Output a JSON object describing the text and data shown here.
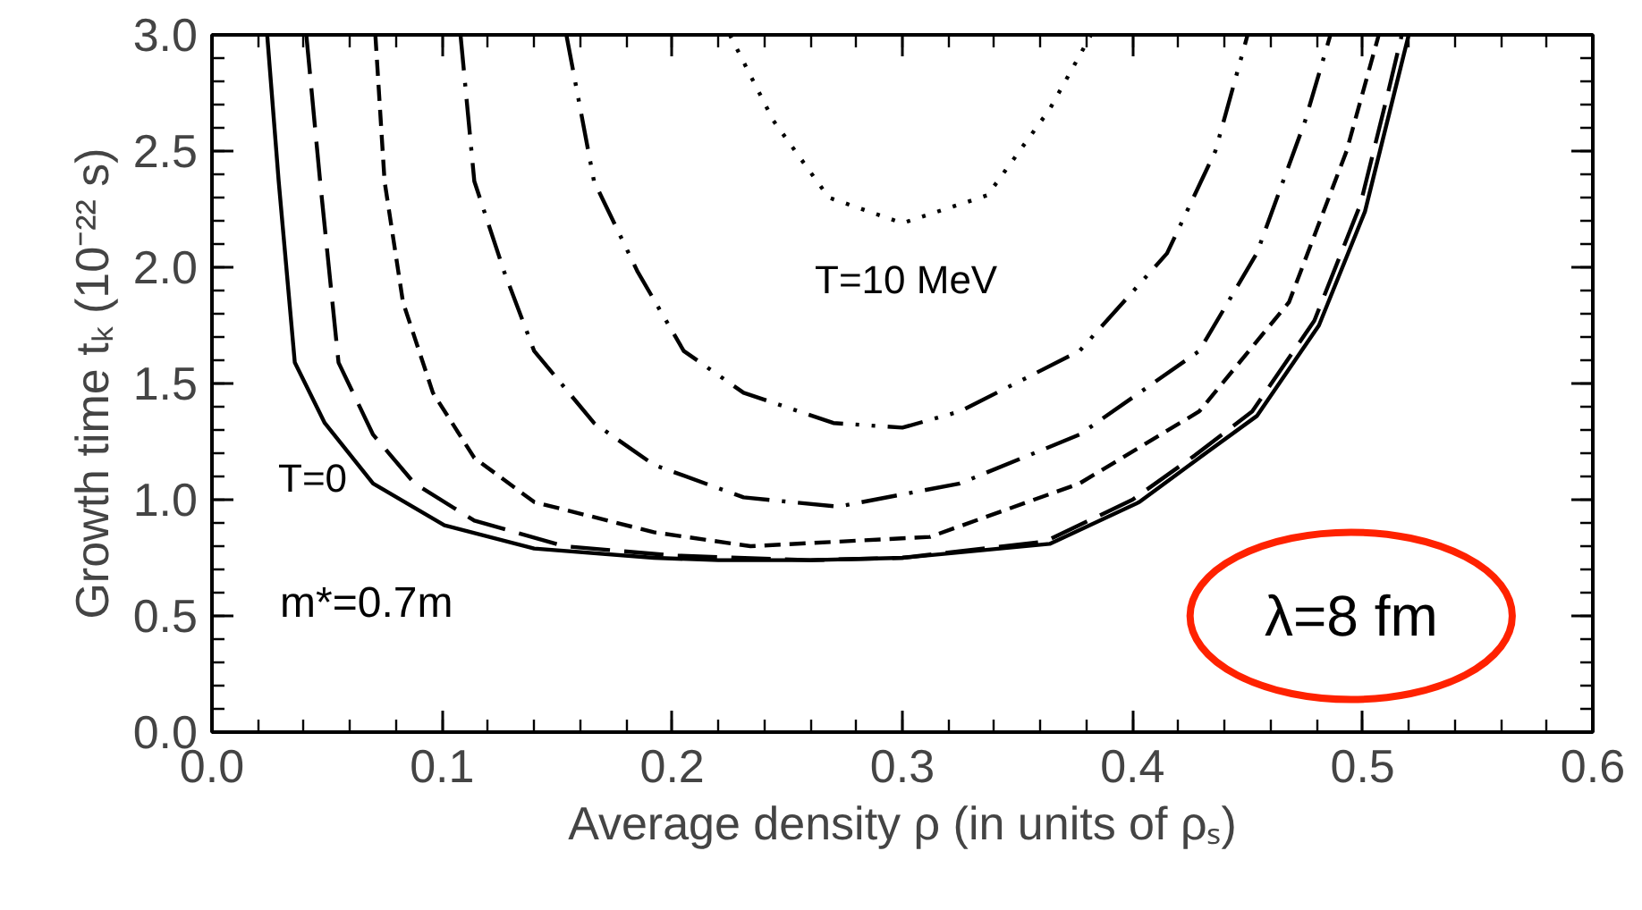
{
  "chart_data": {
    "type": "line",
    "xlabel": "Average density ρ (in units of ρₛ)",
    "ylabel": "Growth time tₖ (10⁻²² s)",
    "xlim": [
      0.0,
      0.6
    ],
    "ylim": [
      0.0,
      3.0
    ],
    "xticks": [
      {
        "value": 0.0,
        "label": "0.0"
      },
      {
        "value": 0.1,
        "label": "0.1"
      },
      {
        "value": 0.2,
        "label": "0.2"
      },
      {
        "value": 0.3,
        "label": "0.3"
      },
      {
        "value": 0.4,
        "label": "0.4"
      },
      {
        "value": 0.5,
        "label": "0.5"
      },
      {
        "value": 0.6,
        "label": "0.6"
      }
    ],
    "yticks": [
      {
        "value": 0.0,
        "label": "0.0"
      },
      {
        "value": 0.5,
        "label": "0.5"
      },
      {
        "value": 1.0,
        "label": "1.0"
      },
      {
        "value": 1.5,
        "label": "1.5"
      },
      {
        "value": 2.0,
        "label": "2.0"
      },
      {
        "value": 2.5,
        "label": "2.5"
      },
      {
        "value": 3.0,
        "label": "3.0"
      }
    ],
    "grid": false,
    "marker": "none",
    "series": [
      {
        "color": "#000000",
        "line_style": "solid",
        "x": [
          0.024,
          0.029,
          0.036,
          0.049,
          0.07,
          0.101,
          0.14,
          0.192,
          0.22,
          0.26,
          0.3,
          0.364,
          0.403,
          0.429,
          0.454,
          0.481,
          0.501,
          0.514,
          0.52
        ],
        "values": [
          3.0,
          2.37,
          1.59,
          1.33,
          1.07,
          0.89,
          0.79,
          0.75,
          0.74,
          0.74,
          0.75,
          0.81,
          0.99,
          1.18,
          1.36,
          1.75,
          2.24,
          2.76,
          3.0
        ]
      },
      {
        "color": "#000000",
        "line_style": "longdash",
        "x": [
          0.041,
          0.047,
          0.055,
          0.07,
          0.088,
          0.114,
          0.153,
          0.2,
          0.26,
          0.3,
          0.362,
          0.4,
          0.427,
          0.452,
          0.479,
          0.499,
          0.511,
          0.517
        ],
        "values": [
          3.0,
          2.37,
          1.59,
          1.28,
          1.07,
          0.91,
          0.8,
          0.76,
          0.74,
          0.75,
          0.82,
          1.0,
          1.19,
          1.38,
          1.77,
          2.27,
          2.75,
          3.0
        ]
      },
      {
        "color": "#000000",
        "line_style": "dashed",
        "x": [
          0.071,
          0.075,
          0.083,
          0.096,
          0.114,
          0.14,
          0.192,
          0.234,
          0.312,
          0.377,
          0.429,
          0.468,
          0.493,
          0.507
        ],
        "values": [
          3.0,
          2.37,
          1.85,
          1.46,
          1.18,
          0.99,
          0.86,
          0.8,
          0.84,
          1.07,
          1.38,
          1.85,
          2.5,
          3.0
        ]
      },
      {
        "color": "#000000",
        "line_style": "dashdot",
        "x": [
          0.108,
          0.114,
          0.127,
          0.14,
          0.166,
          0.192,
          0.231,
          0.272,
          0.325,
          0.377,
          0.429,
          0.454,
          0.475,
          0.486
        ],
        "values": [
          3.0,
          2.37,
          1.98,
          1.64,
          1.33,
          1.15,
          1.01,
          0.97,
          1.07,
          1.28,
          1.64,
          2.06,
          2.63,
          3.0
        ]
      },
      {
        "color": "#000000",
        "line_style": "dashdotdot",
        "x": [
          0.154,
          0.166,
          0.185,
          0.205,
          0.231,
          0.27,
          0.3,
          0.325,
          0.377,
          0.415,
          0.436,
          0.45
        ],
        "values": [
          3.0,
          2.37,
          1.98,
          1.64,
          1.46,
          1.33,
          1.31,
          1.38,
          1.64,
          2.06,
          2.5,
          3.0
        ]
      },
      {
        "color": "#000000",
        "line_style": "dotted",
        "x": [
          0.225,
          0.244,
          0.268,
          0.3,
          0.337,
          0.364,
          0.382
        ],
        "values": [
          3.0,
          2.63,
          2.3,
          2.19,
          2.31,
          2.68,
          3.0
        ]
      }
    ],
    "annotations": [
      "T=0",
      "T=10 MeV",
      "m*=0.7m",
      "λ=8 fm"
    ]
  }
}
